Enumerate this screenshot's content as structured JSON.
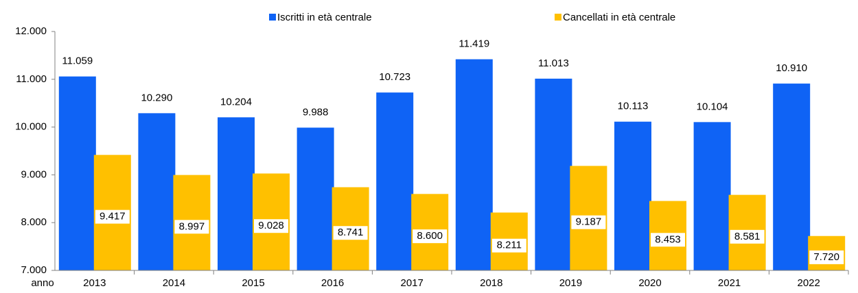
{
  "chart_data": {
    "type": "bar",
    "x_label": "anno",
    "categories": [
      "2013",
      "2014",
      "2015",
      "2016",
      "2017",
      "2018",
      "2019",
      "2020",
      "2021",
      "2022"
    ],
    "series": [
      {
        "name": "Iscritti in età centrale",
        "color": "#0f63f5",
        "values": [
          11059,
          10290,
          10204,
          9988,
          10723,
          11419,
          11013,
          10113,
          10104,
          10910
        ],
        "value_labels": [
          "11.059",
          "10.290",
          "10.204",
          "9.988",
          "10.723",
          "11.419",
          "11.013",
          "10.113",
          "10.104",
          "10.910"
        ]
      },
      {
        "name": "Cancellati in età centrale",
        "color": "#ffc000",
        "values": [
          9417,
          8997,
          9028,
          8741,
          8600,
          8211,
          9187,
          8453,
          8581,
          7720
        ],
        "value_labels": [
          "9.417",
          "8.997",
          "9.028",
          "8.741",
          "8.600",
          "8.211",
          "9.187",
          "8.453",
          "8.581",
          "7.720"
        ]
      }
    ],
    "ylim": [
      7000,
      12000
    ],
    "yticks": [
      {
        "value": 7000,
        "label": "7.000"
      },
      {
        "value": 8000,
        "label": "8.000"
      },
      {
        "value": 9000,
        "label": "9.000"
      },
      {
        "value": 10000,
        "label": "10.000"
      },
      {
        "value": 11000,
        "label": "11.000"
      },
      {
        "value": 12000,
        "label": "12.000"
      }
    ],
    "legend": "top"
  }
}
